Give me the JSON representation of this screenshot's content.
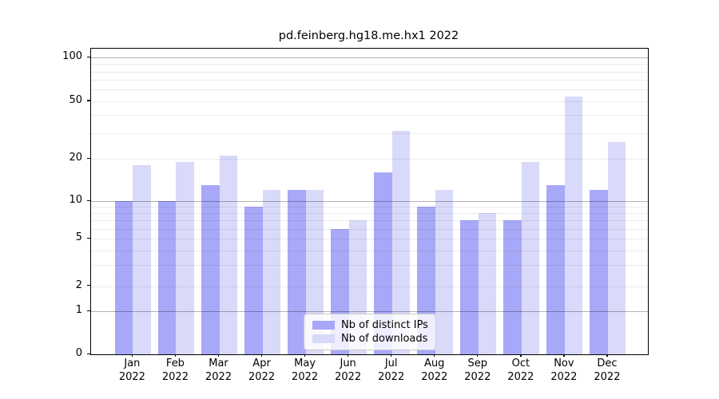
{
  "chart_data": {
    "type": "bar",
    "title": "pd.feinberg.hg18.me.hx1 2022",
    "categories": [
      "Jan",
      "Feb",
      "Mar",
      "Apr",
      "May",
      "Jun",
      "Jul",
      "Aug",
      "Sep",
      "Oct",
      "Nov",
      "Dec"
    ],
    "year_label": "2022",
    "series": [
      {
        "name": "Nb of distinct IPs",
        "color": "#a8a8f8",
        "values": [
          10,
          10,
          13,
          9,
          12,
          6,
          16,
          9,
          7,
          7,
          13,
          12
        ]
      },
      {
        "name": "Nb of downloads",
        "color": "#d9d9fa",
        "values": [
          18,
          19,
          21,
          12,
          12,
          7,
          31,
          12,
          8,
          19,
          54,
          26
        ]
      }
    ],
    "yscale": "symlog",
    "yticks": [
      0,
      1,
      2,
      5,
      10,
      20,
      50,
      100
    ],
    "ytick_labels": [
      "0",
      "1",
      "2",
      "5",
      "10",
      "20",
      "50",
      "100"
    ],
    "ylim": [
      0,
      115
    ],
    "xlabel": "",
    "ylabel": "",
    "grid": "horizontal",
    "legend": {
      "position": "bottom-center",
      "entries": [
        "Nb of distinct IPs",
        "Nb of downloads"
      ]
    }
  }
}
